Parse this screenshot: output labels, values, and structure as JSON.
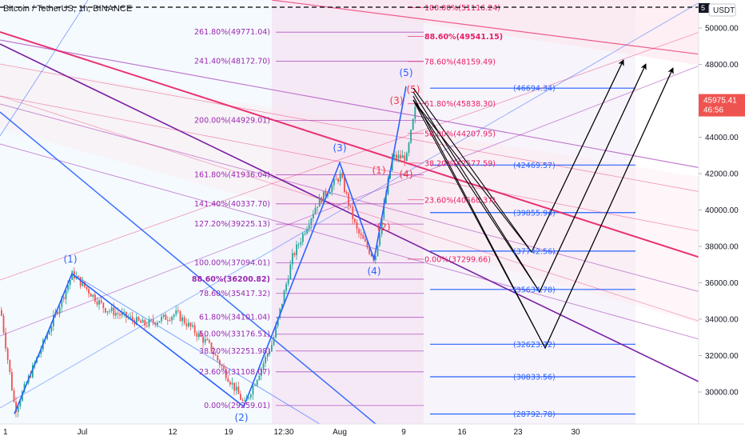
{
  "header": {
    "symbol": "Bitcoin / TetherUS, 1h, BINANCE",
    "currency": "USDT",
    "price_badge_top": "5"
  },
  "last_price": {
    "value": "45975.41",
    "countdown": "46:56",
    "price": 45975.41
  },
  "colors": {
    "candle_up": "#26a69a",
    "candle_down": "#ef5350",
    "blue": "#2962ff",
    "fib_purple": "#9c27b0",
    "fib_pink": "#e91e63",
    "channel_red": "#e91e63",
    "channel_purple": "#7b1fa2",
    "label_blue": "#2962ff",
    "label_red": "#f23645"
  },
  "chart_data": {
    "type": "candlestick",
    "price_axis": {
      "ticks": [
        30000,
        32000,
        34000,
        36000,
        38000,
        40000,
        42000,
        44000,
        46000,
        48000,
        50000
      ],
      "labels": [
        "30000.00",
        "32000.00",
        "34000.00",
        "36000.00",
        "38000.00",
        "40000.00",
        "42000.00",
        "44000.00",
        "46000.00",
        "48000.00",
        "50000.00"
      ],
      "range": [
        28400,
        51600
      ]
    },
    "time_axis": {
      "ticks": [
        "1",
        "Jul",
        "12",
        "19",
        "12:30",
        "Aug",
        "9",
        "16",
        "23",
        "30"
      ]
    },
    "fib_retracement_left": [
      {
        "level": "261.80%",
        "price": 49771.04,
        "label": "261.80%(49771.04)"
      },
      {
        "level": "241.40%",
        "price": 48172.7,
        "label": "241.40%(48172.70)"
      },
      {
        "level": "200.00%",
        "price": 44929.01,
        "label": "200.00%(44929.01)"
      },
      {
        "level": "161.80%",
        "price": 41936.04,
        "label": "161.80%(41936.04)"
      },
      {
        "level": "141.40%",
        "price": 40337.7,
        "label": "141.40%(40337.70)"
      },
      {
        "level": "127.20%",
        "price": 39225.13,
        "label": "127.20%(39225.13)"
      },
      {
        "level": "100.00%",
        "price": 37094.01,
        "label": "100.00%(37094.01)"
      },
      {
        "level": "88.60%",
        "price": 36200.82,
        "label": "88.60%(36200.82)",
        "bold": true
      },
      {
        "level": "78.60%",
        "price": 35417.32,
        "label": "78.60%(35417.32)"
      },
      {
        "level": "61.80%",
        "price": 34101.04,
        "label": "61.80%(34101.04)"
      },
      {
        "level": "50.00%",
        "price": 33176.51,
        "label": "50.00%(33176.51)"
      },
      {
        "level": "38.20%",
        "price": 32251.98,
        "label": "38.20%(32251.98)"
      },
      {
        "level": "23.60%",
        "price": 31108.07,
        "label": "23.60%(31108.07)"
      },
      {
        "level": "0.00%",
        "price": 29259.01,
        "label": "0.00%(29259.01)"
      }
    ],
    "fib_retracement_right": [
      {
        "level": "100.00%",
        "price": 51116.24,
        "label": "100.00%(51116.24)"
      },
      {
        "level": "88.60%",
        "price": 49541.15,
        "label": "88.60%(49541.15)",
        "bold": true
      },
      {
        "level": "78.60%",
        "price": 48159.49,
        "label": "78.60%(48159.49)"
      },
      {
        "level": "61.80%",
        "price": 45838.3,
        "label": "61.80%(45838.30)"
      },
      {
        "level": "50.00%",
        "price": 44207.95,
        "label": "50.00%(44207.95)"
      },
      {
        "level": "38.20%",
        "price": 42577.59,
        "label": "38.20%(42577.59)"
      },
      {
        "level": "23.60%",
        "price": 40560.37,
        "label": "23.60%(40560.37)"
      },
      {
        "level": "0.00%",
        "price": 37299.66,
        "label": "0.00%(37299.66)"
      }
    ],
    "horizontal_levels": [
      {
        "price": 46694.34,
        "label": "(46694.34)"
      },
      {
        "price": 42469.57,
        "label": "(42469.57)"
      },
      {
        "price": 39855.94,
        "label": "(39855.94)"
      },
      {
        "price": 37742.56,
        "label": "(37742.56)"
      },
      {
        "price": 35634.78,
        "label": "(35634.78)"
      },
      {
        "price": 32623.72,
        "label": "(32623.72)"
      },
      {
        "price": 30833.56,
        "label": "(30833.56)"
      },
      {
        "price": 28792.78,
        "label": "(28792.78)"
      }
    ],
    "wave_labels_blue": [
      "(1)",
      "(2)",
      "(3)",
      "(4)",
      "(5)"
    ],
    "wave_labels_red": [
      "(1)",
      "(2)",
      "(3)",
      "(4)",
      "(5)"
    ]
  }
}
